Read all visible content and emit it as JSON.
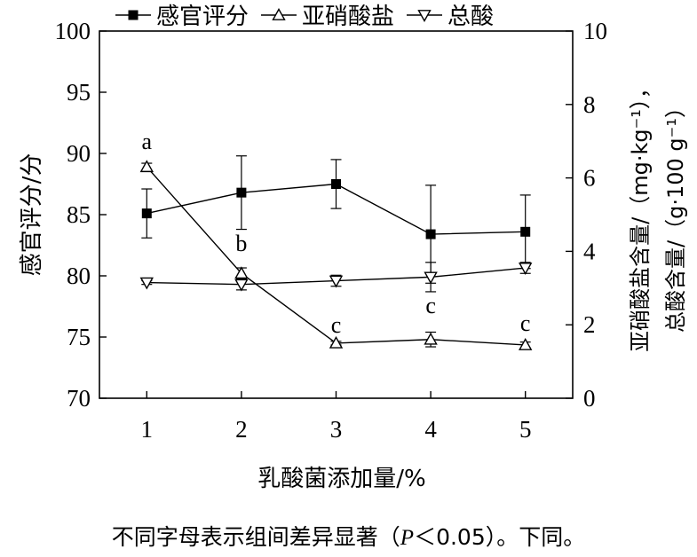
{
  "chart_data": {
    "type": "line",
    "x": [
      1,
      2,
      3,
      4,
      5
    ],
    "xlabel": "乳酸菌添加量/%",
    "ylabel": "感官评分/分",
    "y2label_line1": "亚硝酸盐含量/（mg·kg⁻¹），",
    "y2label_line2": "总酸含量/（g·100 g⁻¹）",
    "ylim": [
      70,
      100
    ],
    "y2lim": [
      0,
      10
    ],
    "xlim": [
      0.5,
      5.5
    ],
    "yticks": [
      70,
      75,
      80,
      85,
      90,
      95,
      100
    ],
    "y2ticks": [
      0,
      2,
      4,
      6,
      8,
      10
    ],
    "xticks": [
      1,
      2,
      3,
      4,
      5
    ],
    "legend_position": "top",
    "series": [
      {
        "name": "感官评分",
        "axis": "left",
        "marker": "square-filled",
        "values": [
          85.1,
          86.8,
          87.5,
          83.4,
          83.6
        ],
        "errors": [
          2.0,
          3.0,
          2.0,
          4.0,
          3.0
        ]
      },
      {
        "name": "亚硝酸盐",
        "axis": "right",
        "marker": "triangle-up-open",
        "values": [
          6.3,
          3.4,
          1.5,
          1.6,
          1.45
        ],
        "errors": [
          0.1,
          0.15,
          0.05,
          0.2,
          0.08
        ],
        "labels": [
          "a",
          "b",
          "c",
          "c",
          "c"
        ]
      },
      {
        "name": "总酸",
        "axis": "right",
        "marker": "triangle-down-open",
        "values": [
          3.15,
          3.1,
          3.2,
          3.3,
          3.55
        ],
        "errors": [
          0.05,
          0.15,
          0.15,
          0.4,
          0.15
        ]
      }
    ]
  },
  "caption": {
    "text_before": "不同字母表示组间差异显著（",
    "p_symbol": "P",
    "text_after": "＜0.05）。下同。"
  }
}
